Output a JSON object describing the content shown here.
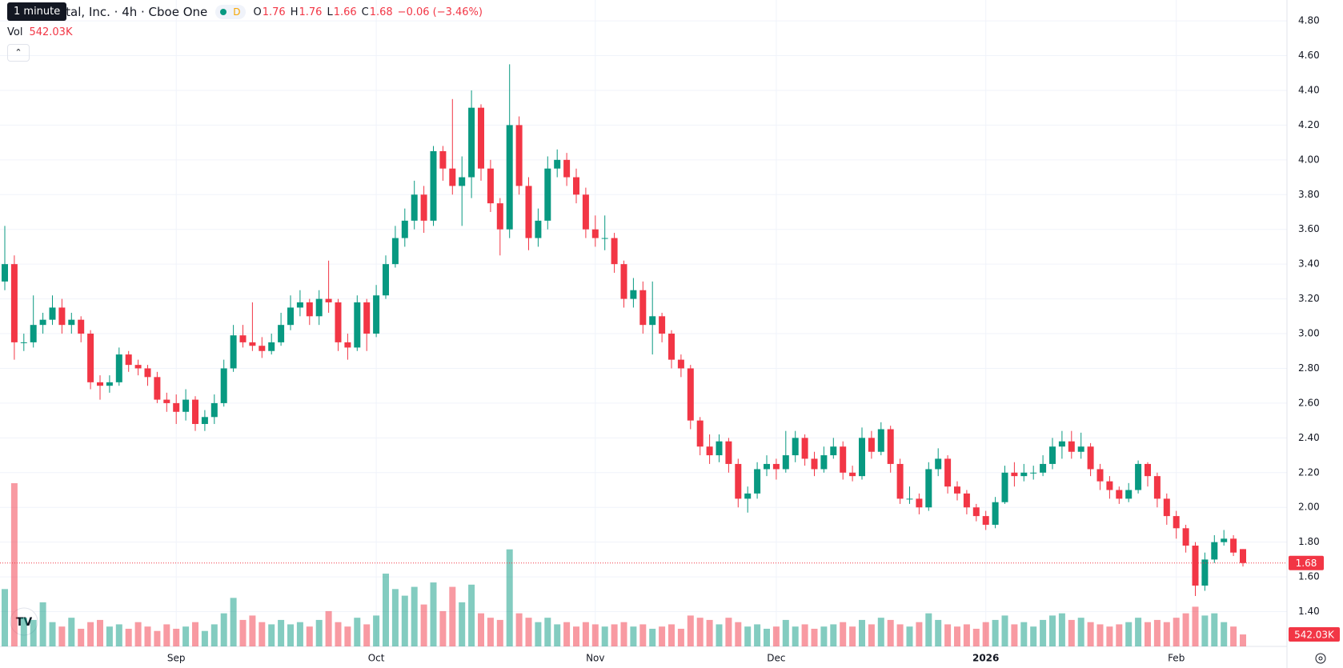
{
  "chart_data": {
    "type": "candlestick",
    "title": "ital, Inc. · 4h · Cboe One",
    "interval_tooltip": "1 minute",
    "badge": "D",
    "open_label": "O",
    "high_label": "H",
    "low_label": "L",
    "close_label": "C",
    "change": "−0.06 (−3.46%)",
    "volume_label": "Vol",
    "last_volume_label": "542.03K",
    "up_color": "#089981",
    "down_color": "#f23645",
    "grid": true,
    "ylim": [
      1.2,
      4.92
    ],
    "yticks": [
      {
        "value": 1.4,
        "label": "1.40"
      },
      {
        "value": 1.6,
        "label": "1.60"
      },
      {
        "value": 1.8,
        "label": "1.80"
      },
      {
        "value": 2.0,
        "label": "2.00"
      },
      {
        "value": 2.2,
        "label": "2.20"
      },
      {
        "value": 2.4,
        "label": "2.40"
      },
      {
        "value": 2.6,
        "label": "2.60"
      },
      {
        "value": 2.8,
        "label": "2.80"
      },
      {
        "value": 3.0,
        "label": "3.00"
      },
      {
        "value": 3.2,
        "label": "3.20"
      },
      {
        "value": 3.4,
        "label": "3.40"
      },
      {
        "value": 3.6,
        "label": "3.60"
      },
      {
        "value": 3.8,
        "label": "3.80"
      },
      {
        "value": 4.0,
        "label": "4.00"
      },
      {
        "value": 4.2,
        "label": "4.20"
      },
      {
        "value": 4.4,
        "label": "4.40"
      },
      {
        "value": 4.6,
        "label": "4.60"
      },
      {
        "value": 4.8,
        "label": "4.80"
      }
    ],
    "xticks": [
      {
        "value": 18,
        "label": "Sep"
      },
      {
        "value": 39,
        "label": "Oct"
      },
      {
        "value": 62,
        "label": "Nov"
      },
      {
        "value": 81,
        "label": "Dec"
      },
      {
        "value": 103,
        "label": "2026"
      },
      {
        "value": 123,
        "label": "Feb"
      }
    ],
    "open": [
      3.3,
      3.4,
      2.95,
      2.95,
      3.05,
      3.08,
      3.15,
      3.05,
      3.08,
      3.0,
      2.72,
      2.7,
      2.72,
      2.88,
      2.82,
      2.8,
      2.75,
      2.62,
      2.6,
      2.55,
      2.62,
      2.48,
      2.52,
      2.6,
      2.8,
      2.99,
      2.95,
      2.93,
      2.9,
      2.95,
      3.05,
      3.15,
      3.18,
      3.1,
      3.2,
      3.18,
      2.95,
      2.92,
      3.18,
      3.0,
      3.22,
      3.4,
      3.55,
      3.65,
      3.8,
      3.65,
      4.05,
      3.95,
      3.85,
      3.9,
      4.3,
      3.95,
      3.75,
      3.6,
      4.2,
      3.85,
      3.55,
      3.65,
      3.95,
      4.0,
      3.9,
      3.8,
      3.6,
      3.55,
      3.55,
      3.4,
      3.2,
      3.25,
      3.05,
      3.1,
      3.0,
      2.85,
      2.8,
      2.5,
      2.35,
      2.3,
      2.38,
      2.25,
      2.05,
      2.08,
      2.22,
      2.25,
      2.22,
      2.3,
      2.4,
      2.28,
      2.22,
      2.3,
      2.35,
      2.2,
      2.18,
      2.4,
      2.32,
      2.45,
      2.25,
      2.05,
      2.05,
      2.0,
      2.22,
      2.28,
      2.12,
      2.08,
      2.0,
      1.95,
      1.9,
      2.03,
      2.2,
      2.18,
      2.2,
      2.2,
      2.25,
      2.35,
      2.38,
      2.32,
      2.35,
      2.22,
      2.15,
      2.1,
      2.05,
      2.1,
      2.25,
      2.18,
      2.05,
      1.95,
      1.88,
      1.78,
      1.55,
      1.7,
      1.8,
      1.82,
      1.76
    ],
    "high": [
      3.62,
      3.45,
      3.0,
      3.22,
      3.12,
      3.22,
      3.2,
      3.12,
      3.1,
      3.02,
      2.76,
      2.76,
      2.92,
      2.9,
      2.85,
      2.82,
      2.78,
      2.66,
      2.65,
      2.68,
      2.64,
      2.56,
      2.65,
      2.85,
      3.05,
      3.05,
      3.18,
      2.98,
      3.0,
      3.12,
      3.22,
      3.25,
      3.2,
      3.25,
      3.42,
      3.2,
      3.0,
      3.22,
      3.2,
      3.28,
      3.45,
      3.62,
      3.72,
      3.88,
      3.85,
      4.08,
      4.08,
      4.35,
      4.02,
      4.4,
      4.32,
      4.0,
      3.78,
      4.55,
      4.25,
      3.9,
      3.72,
      4.02,
      4.06,
      4.04,
      3.95,
      3.84,
      3.68,
      3.68,
      3.58,
      3.42,
      3.32,
      3.3,
      3.3,
      3.12,
      3.02,
      2.88,
      2.82,
      2.52,
      2.42,
      2.42,
      2.4,
      2.28,
      2.12,
      2.26,
      2.3,
      2.28,
      2.44,
      2.44,
      2.42,
      2.32,
      2.35,
      2.4,
      2.38,
      2.24,
      2.46,
      2.44,
      2.49,
      2.47,
      2.28,
      2.12,
      2.08,
      2.26,
      2.34,
      2.3,
      2.15,
      2.1,
      2.02,
      1.98,
      2.06,
      2.24,
      2.26,
      2.25,
      2.24,
      2.3,
      2.4,
      2.44,
      2.44,
      2.43,
      2.37,
      2.25,
      2.18,
      2.12,
      2.14,
      2.27,
      2.26,
      2.2,
      2.08,
      1.98,
      1.9,
      1.8,
      1.74,
      1.84,
      1.87,
      1.84,
      1.76
    ],
    "low": [
      3.25,
      2.85,
      2.9,
      2.92,
      3.0,
      3.05,
      3.0,
      3.0,
      2.95,
      2.68,
      2.62,
      2.66,
      2.7,
      2.78,
      2.76,
      2.7,
      2.6,
      2.55,
      2.48,
      2.5,
      2.44,
      2.44,
      2.48,
      2.58,
      2.78,
      2.92,
      2.9,
      2.86,
      2.88,
      2.93,
      3.02,
      3.1,
      3.05,
      3.05,
      3.12,
      2.9,
      2.85,
      2.9,
      2.9,
      2.98,
      3.2,
      3.38,
      3.5,
      3.6,
      3.58,
      3.62,
      3.88,
      3.8,
      3.62,
      3.78,
      3.88,
      3.7,
      3.45,
      3.55,
      3.8,
      3.48,
      3.5,
      3.6,
      3.9,
      3.85,
      3.75,
      3.55,
      3.5,
      3.48,
      3.35,
      3.15,
      3.15,
      3.0,
      2.88,
      2.95,
      2.8,
      2.75,
      2.45,
      2.3,
      2.25,
      2.26,
      2.2,
      2.0,
      1.97,
      2.05,
      2.18,
      2.16,
      2.2,
      2.26,
      2.24,
      2.18,
      2.2,
      2.28,
      2.16,
      2.15,
      2.16,
      2.28,
      2.3,
      2.2,
      2.02,
      2.02,
      1.96,
      1.98,
      2.18,
      2.08,
      2.04,
      1.96,
      1.92,
      1.87,
      1.88,
      2.02,
      2.12,
      2.15,
      2.16,
      2.18,
      2.22,
      2.28,
      2.28,
      2.28,
      2.18,
      2.1,
      2.05,
      2.02,
      2.03,
      2.08,
      2.12,
      2.0,
      1.9,
      1.82,
      1.74,
      1.49,
      1.52,
      1.68,
      1.78,
      1.72,
      1.66
    ],
    "close": [
      3.4,
      2.95,
      2.95,
      3.05,
      3.08,
      3.15,
      3.05,
      3.08,
      3.0,
      2.72,
      2.7,
      2.72,
      2.88,
      2.82,
      2.8,
      2.75,
      2.62,
      2.6,
      2.55,
      2.62,
      2.48,
      2.52,
      2.6,
      2.8,
      2.99,
      2.95,
      2.93,
      2.9,
      2.95,
      3.05,
      3.15,
      3.18,
      3.1,
      3.2,
      3.18,
      2.95,
      2.92,
      3.18,
      3.0,
      3.22,
      3.4,
      3.55,
      3.65,
      3.8,
      3.65,
      4.05,
      3.95,
      3.85,
      3.9,
      4.3,
      3.95,
      3.75,
      3.6,
      4.2,
      3.85,
      3.55,
      3.65,
      3.95,
      4.0,
      3.9,
      3.8,
      3.6,
      3.55,
      3.55,
      3.4,
      3.2,
      3.25,
      3.05,
      3.1,
      3.0,
      2.85,
      2.8,
      2.5,
      2.35,
      2.3,
      2.38,
      2.25,
      2.05,
      2.08,
      2.22,
      2.25,
      2.22,
      2.3,
      2.4,
      2.28,
      2.22,
      2.3,
      2.35,
      2.2,
      2.18,
      2.4,
      2.32,
      2.45,
      2.25,
      2.05,
      2.05,
      2.0,
      2.22,
      2.28,
      2.12,
      2.08,
      2.0,
      1.95,
      1.9,
      2.03,
      2.2,
      2.18,
      2.2,
      2.2,
      2.25,
      2.35,
      2.38,
      2.32,
      2.35,
      2.22,
      2.15,
      2.1,
      2.05,
      2.1,
      2.25,
      2.18,
      2.05,
      1.95,
      1.88,
      1.78,
      1.55,
      1.7,
      1.8,
      1.82,
      1.74,
      1.68
    ],
    "volume": [
      2600000,
      7400000,
      1300000,
      1200000,
      2000000,
      1100000,
      900000,
      1300000,
      800000,
      1100000,
      1200000,
      900000,
      1000000,
      800000,
      1100000,
      900000,
      700000,
      1000000,
      800000,
      900000,
      1100000,
      700000,
      1000000,
      1500000,
      2200000,
      1200000,
      1400000,
      1100000,
      1000000,
      1200000,
      1000000,
      1100000,
      900000,
      1200000,
      1600000,
      1100000,
      900000,
      1300000,
      1000000,
      1400000,
      3300000,
      2600000,
      2300000,
      2700000,
      1900000,
      2900000,
      1600000,
      2700000,
      2000000,
      2800000,
      1500000,
      1300000,
      1200000,
      4400000,
      1500000,
      1300000,
      1100000,
      1300000,
      1000000,
      1100000,
      900000,
      1100000,
      1000000,
      900000,
      1000000,
      1100000,
      900000,
      1000000,
      800000,
      900000,
      1000000,
      800000,
      1400000,
      1300000,
      1200000,
      1000000,
      1300000,
      1100000,
      900000,
      1000000,
      800000,
      900000,
      1200000,
      900000,
      1000000,
      800000,
      900000,
      1000000,
      1100000,
      900000,
      1200000,
      1000000,
      1300000,
      1200000,
      1000000,
      900000,
      1100000,
      1500000,
      1200000,
      1000000,
      900000,
      1000000,
      800000,
      1100000,
      1200000,
      1400000,
      1000000,
      1100000,
      900000,
      1200000,
      1400000,
      1500000,
      1200000,
      1300000,
      1100000,
      1000000,
      900000,
      1000000,
      1100000,
      1300000,
      1100000,
      1200000,
      1100000,
      1300000,
      1500000,
      1800000,
      1400000,
      1500000,
      1100000,
      900000,
      542030
    ]
  }
}
